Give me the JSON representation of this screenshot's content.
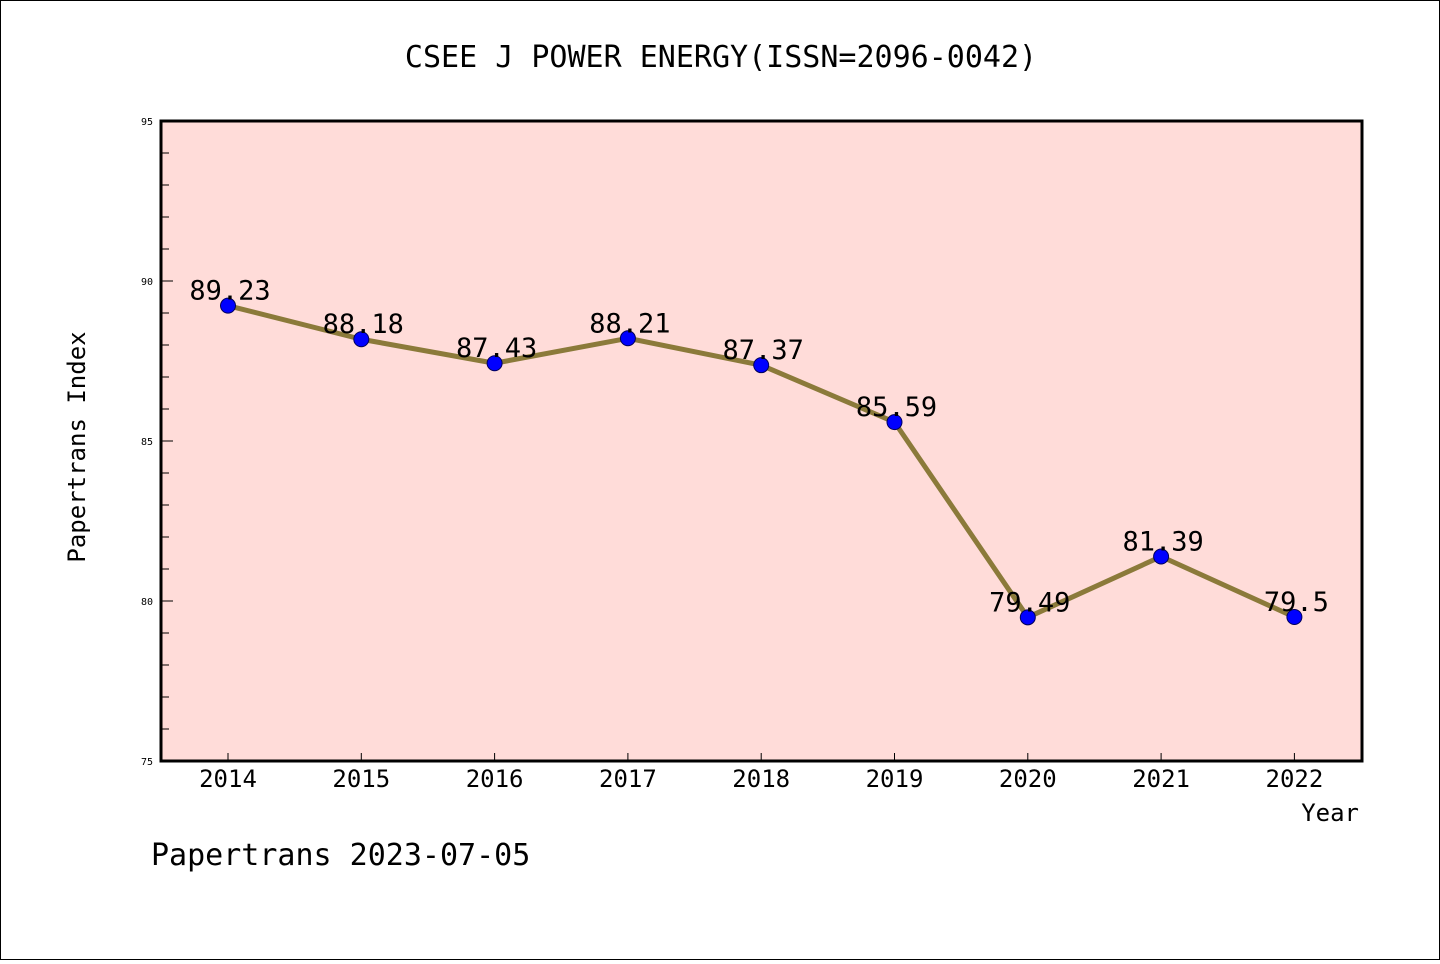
{
  "chart_data": {
    "type": "line",
    "title": "CSEE J POWER ENERGY(ISSN=2096-0042)",
    "xlabel": "Year",
    "ylabel": "Papertrans Index",
    "ylim": [
      75,
      95
    ],
    "yticks": [
      75,
      80,
      85,
      90,
      95
    ],
    "categories": [
      "2014",
      "2015",
      "2016",
      "2017",
      "2018",
      "2019",
      "2020",
      "2021",
      "2022"
    ],
    "series": [
      {
        "values": [
          89.23,
          88.18,
          87.43,
          88.21,
          87.37,
          85.59,
          79.49,
          81.39,
          79.5
        ],
        "labels": [
          "89.23",
          "88.18",
          "87.43",
          "88.21",
          "87.37",
          "85.59",
          "79.49",
          "81.39",
          "79.5"
        ],
        "line_color": "#8b7a3a",
        "marker_color": "#0000ff"
      }
    ],
    "plot_background": "#ffdcd9",
    "grid": false,
    "legend": "none"
  },
  "footer": {
    "text": "Papertrans 2023-07-05"
  }
}
